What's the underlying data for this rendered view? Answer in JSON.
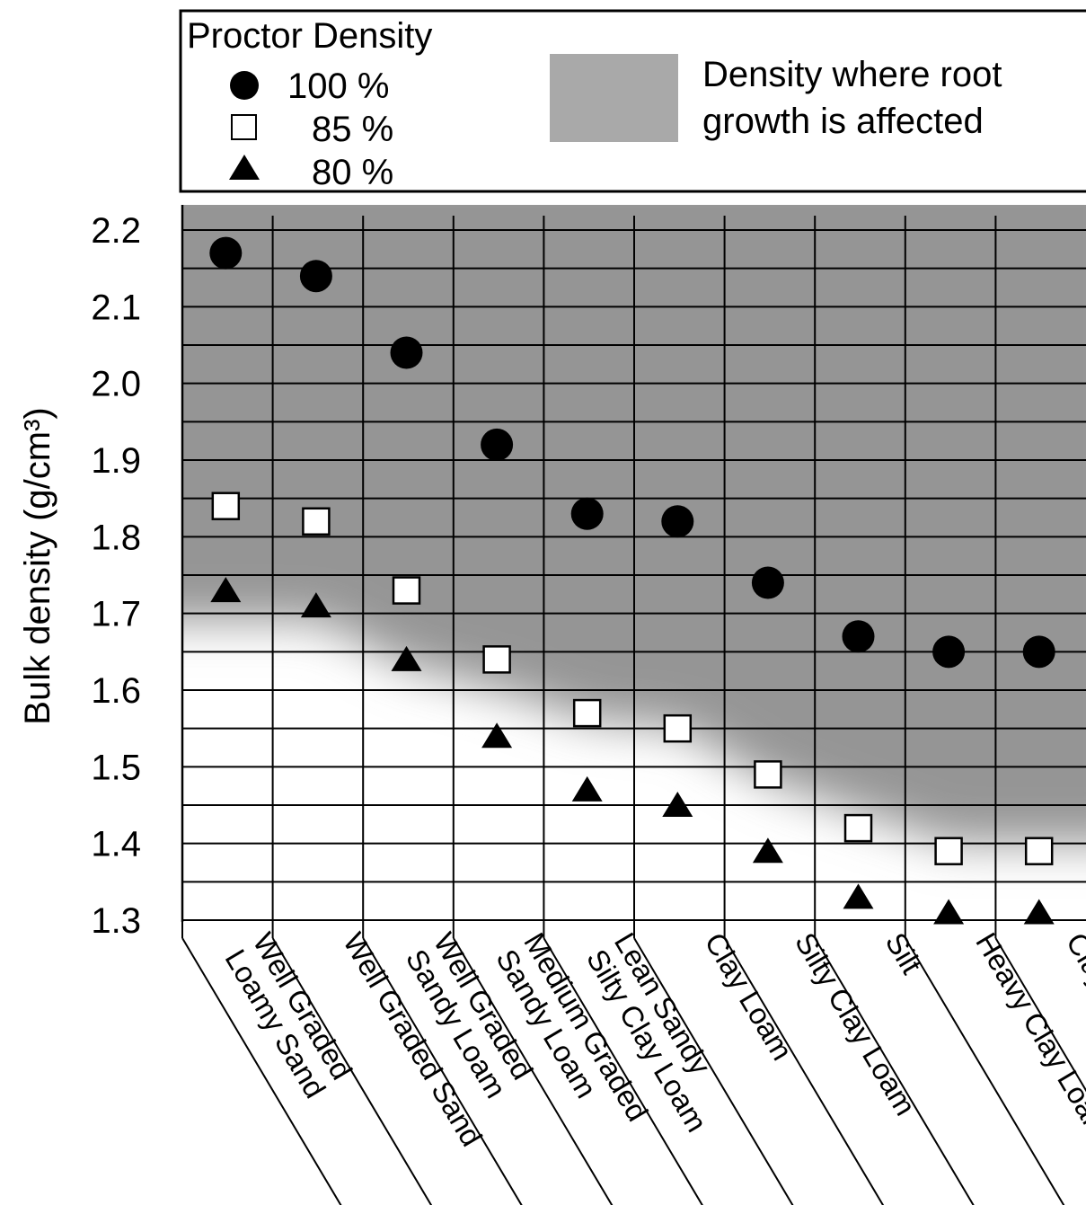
{
  "chart_data": {
    "type": "scatter",
    "title": "",
    "xlabel": "",
    "ylabel": "Bulk density (g/cm³)",
    "ylim": [
      1.3,
      2.22
    ],
    "yticks": [
      "2.2",
      "2.1",
      "2.0",
      "1.9",
      "1.8",
      "1.7",
      "1.6",
      "1.5",
      "1.4",
      "1.3"
    ],
    "grid": true,
    "legend_position": "top",
    "legend_title": "Proctor Density",
    "shaded_region_label": "Density where root growth is affected",
    "categories": [
      "Well Graded Loamy Sand",
      "Well Graded Sand",
      "Well Graded Sandy Loam",
      "Medium Graded Sandy Loam",
      "Lean Sandy Silty Clay Loam",
      "Clay Loam",
      "Silty Clay Loam",
      "Silt",
      "Heavy Clay Loam",
      "Clay"
    ],
    "category_label_lines": [
      [
        "Well Graded",
        "Loamy Sand"
      ],
      [
        "Well Graded Sand"
      ],
      [
        "Well Graded",
        "Sandy Loam"
      ],
      [
        "Medium Graded",
        "Sandy Loam"
      ],
      [
        "Lean Sandy",
        "Silty Clay Loam"
      ],
      [
        "Clay Loam"
      ],
      [
        "Silty Clay Loam"
      ],
      [
        "Silt"
      ],
      [
        "Heavy Clay Loam"
      ],
      [
        "Clay"
      ]
    ],
    "root_limiting_density": [
      1.69,
      1.69,
      1.63,
      1.6,
      1.56,
      1.55,
      1.48,
      1.44,
      1.4,
      1.4
    ],
    "series": [
      {
        "name": "100 %",
        "marker": "filled-circle",
        "values": [
          2.17,
          2.14,
          2.04,
          1.92,
          1.83,
          1.82,
          1.74,
          1.67,
          1.65,
          1.65
        ]
      },
      {
        "name": "85 %",
        "marker": "open-square",
        "values": [
          1.84,
          1.82,
          1.73,
          1.64,
          1.57,
          1.55,
          1.49,
          1.42,
          1.39,
          1.39
        ]
      },
      {
        "name": "80 %",
        "marker": "filled-triangle",
        "values": [
          1.73,
          1.71,
          1.64,
          1.54,
          1.47,
          1.45,
          1.39,
          1.33,
          1.31,
          1.31
        ]
      }
    ]
  },
  "colors": {
    "shade": "#959595",
    "grid": "#000000",
    "marker": "#000000",
    "open_marker_fill": "#ffffff"
  }
}
